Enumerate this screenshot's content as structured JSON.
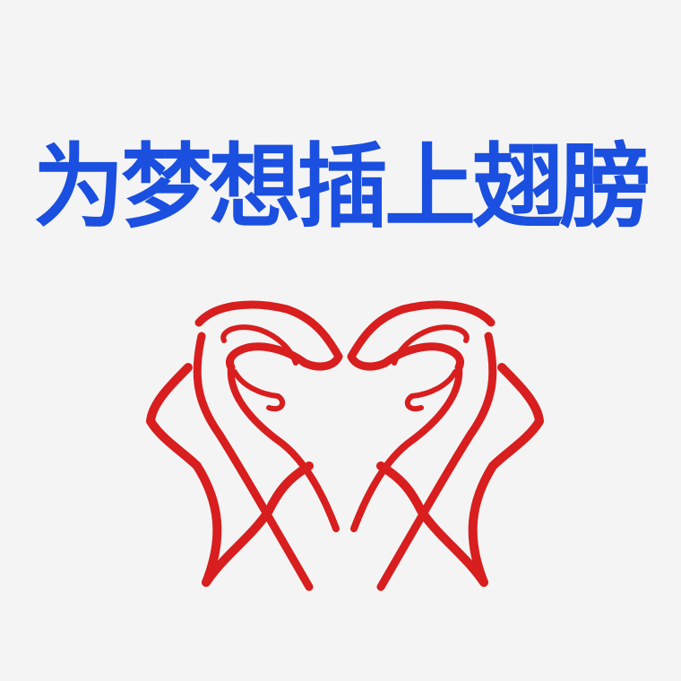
{
  "headline": {
    "text": "为梦想插上翅膀",
    "color": "#1a4fe0"
  },
  "logo": {
    "icon": "heart-hands-icon",
    "color": "#d81e1e",
    "background": "#f4f4f4"
  }
}
